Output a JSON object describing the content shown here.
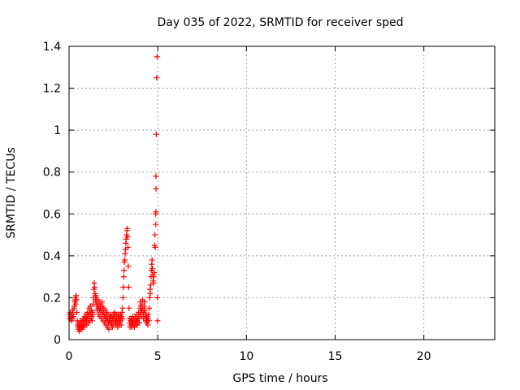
{
  "chart_data": {
    "type": "scatter",
    "title": "Day 035 of 2022, SRMTID for receiver sped",
    "xlabel": "GPS time / hours",
    "ylabel": "SRMTID / TECUs",
    "xlim": [
      0,
      24
    ],
    "ylim": [
      0,
      1.4
    ],
    "xticks": [
      0,
      5,
      10,
      15,
      20
    ],
    "xtick_labels": [
      "0",
      "5",
      "10",
      "15",
      "20"
    ],
    "yticks": [
      0,
      0.2,
      0.4,
      0.6,
      0.8,
      1.0,
      1.2,
      1.4
    ],
    "ytick_labels": [
      "0",
      "0.2",
      "0.4",
      "0.6",
      "0.8",
      "1",
      "1.2",
      "1.4"
    ],
    "grid": true,
    "marker": "+",
    "series": [
      {
        "name": "SRMTID",
        "color": "#ff0000",
        "points": [
          [
            0.02,
            0.12
          ],
          [
            0.05,
            0.1
          ],
          [
            0.08,
            0.13
          ],
          [
            0.1,
            0.11
          ],
          [
            0.13,
            0.09
          ],
          [
            0.15,
            0.12
          ],
          [
            0.18,
            0.1
          ],
          [
            0.2,
            0.14
          ],
          [
            0.23,
            0.12
          ],
          [
            0.25,
            0.11
          ],
          [
            0.28,
            0.15
          ],
          [
            0.3,
            0.16
          ],
          [
            0.32,
            0.18
          ],
          [
            0.34,
            0.19
          ],
          [
            0.36,
            0.2
          ],
          [
            0.38,
            0.17
          ],
          [
            0.4,
            0.21
          ],
          [
            0.42,
            0.19
          ],
          [
            0.44,
            0.13
          ],
          [
            0.46,
            0.09
          ],
          [
            0.48,
            0.07
          ],
          [
            0.5,
            0.06
          ],
          [
            0.52,
            0.05
          ],
          [
            0.54,
            0.08
          ],
          [
            0.56,
            0.06
          ],
          [
            0.58,
            0.04
          ],
          [
            0.6,
            0.07
          ],
          [
            0.62,
            0.09
          ],
          [
            0.64,
            0.05
          ],
          [
            0.66,
            0.06
          ],
          [
            0.68,
            0.08
          ],
          [
            0.7,
            0.07
          ],
          [
            0.72,
            0.05
          ],
          [
            0.74,
            0.09
          ],
          [
            0.76,
            0.06
          ],
          [
            0.78,
            0.08
          ],
          [
            0.8,
            0.1
          ],
          [
            0.82,
            0.07
          ],
          [
            0.84,
            0.06
          ],
          [
            0.86,
            0.09
          ],
          [
            0.88,
            0.11
          ],
          [
            0.9,
            0.08
          ],
          [
            0.92,
            0.07
          ],
          [
            0.94,
            0.1
          ],
          [
            0.96,
            0.12
          ],
          [
            0.98,
            0.09
          ],
          [
            1.0,
            0.07
          ],
          [
            1.02,
            0.11
          ],
          [
            1.04,
            0.13
          ],
          [
            1.06,
            0.1
          ],
          [
            1.08,
            0.08
          ],
          [
            1.1,
            0.12
          ],
          [
            1.12,
            0.15
          ],
          [
            1.14,
            0.11
          ],
          [
            1.16,
            0.09
          ],
          [
            1.18,
            0.13
          ],
          [
            1.2,
            0.16
          ],
          [
            1.22,
            0.12
          ],
          [
            1.24,
            0.1
          ],
          [
            1.26,
            0.14
          ],
          [
            1.28,
            0.11
          ],
          [
            1.3,
            0.09
          ],
          [
            1.32,
            0.13
          ],
          [
            1.34,
            0.12
          ],
          [
            1.36,
            0.17
          ],
          [
            1.38,
            0.2
          ],
          [
            1.4,
            0.24
          ],
          [
            1.42,
            0.27
          ],
          [
            1.44,
            0.25
          ],
          [
            1.46,
            0.22
          ],
          [
            1.48,
            0.19
          ],
          [
            1.5,
            0.21
          ],
          [
            1.52,
            0.18
          ],
          [
            1.54,
            0.2
          ],
          [
            1.56,
            0.16
          ],
          [
            1.58,
            0.14
          ],
          [
            1.6,
            0.17
          ],
          [
            1.62,
            0.19
          ],
          [
            1.64,
            0.15
          ],
          [
            1.66,
            0.12
          ],
          [
            1.68,
            0.16
          ],
          [
            1.7,
            0.18
          ],
          [
            1.72,
            0.14
          ],
          [
            1.74,
            0.11
          ],
          [
            1.76,
            0.15
          ],
          [
            1.78,
            0.17
          ],
          [
            1.8,
            0.13
          ],
          [
            1.82,
            0.1
          ],
          [
            1.84,
            0.14
          ],
          [
            1.86,
            0.18
          ],
          [
            1.88,
            0.16
          ],
          [
            1.9,
            0.12
          ],
          [
            1.92,
            0.09
          ],
          [
            1.94,
            0.13
          ],
          [
            1.96,
            0.15
          ],
          [
            1.98,
            0.11
          ],
          [
            2.0,
            0.08
          ],
          [
            2.02,
            0.12
          ],
          [
            2.04,
            0.14
          ],
          [
            2.06,
            0.1
          ],
          [
            2.08,
            0.07
          ],
          [
            2.1,
            0.11
          ],
          [
            2.12,
            0.13
          ],
          [
            2.14,
            0.09
          ],
          [
            2.16,
            0.06
          ],
          [
            2.18,
            0.1
          ],
          [
            2.2,
            0.12
          ],
          [
            2.22,
            0.08
          ],
          [
            2.24,
            0.05
          ],
          [
            2.26,
            0.09
          ],
          [
            2.28,
            0.11
          ],
          [
            2.3,
            0.08
          ],
          [
            2.32,
            0.1
          ],
          [
            2.34,
            0.12
          ],
          [
            2.36,
            0.09
          ],
          [
            2.38,
            0.07
          ],
          [
            2.4,
            0.11
          ],
          [
            2.42,
            0.08
          ],
          [
            2.44,
            0.06
          ],
          [
            2.46,
            0.1
          ],
          [
            2.48,
            0.12
          ],
          [
            2.5,
            0.09
          ],
          [
            2.52,
            0.07
          ],
          [
            2.54,
            0.11
          ],
          [
            2.56,
            0.13
          ],
          [
            2.58,
            0.1
          ],
          [
            2.6,
            0.08
          ],
          [
            2.62,
            0.12
          ],
          [
            2.64,
            0.09
          ],
          [
            2.66,
            0.07
          ],
          [
            2.68,
            0.1
          ],
          [
            2.7,
            0.12
          ],
          [
            2.72,
            0.08
          ],
          [
            2.74,
            0.06
          ],
          [
            2.76,
            0.1
          ],
          [
            2.78,
            0.12
          ],
          [
            2.8,
            0.09
          ],
          [
            2.82,
            0.07
          ],
          [
            2.84,
            0.11
          ],
          [
            2.86,
            0.08
          ],
          [
            2.88,
            0.1
          ],
          [
            2.9,
            0.12
          ],
          [
            2.92,
            0.09
          ],
          [
            2.94,
            0.07
          ],
          [
            2.96,
            0.11
          ],
          [
            2.98,
            0.13
          ],
          [
            3.0,
            0.1
          ],
          [
            3.02,
            0.15
          ],
          [
            3.04,
            0.2
          ],
          [
            3.06,
            0.25
          ],
          [
            3.08,
            0.3
          ],
          [
            3.1,
            0.33
          ],
          [
            3.12,
            0.37
          ],
          [
            3.14,
            0.38
          ],
          [
            3.16,
            0.41
          ],
          [
            3.18,
            0.43
          ],
          [
            3.2,
            0.46
          ],
          [
            3.22,
            0.48
          ],
          [
            3.24,
            0.5
          ],
          [
            3.26,
            0.52
          ],
          [
            3.28,
            0.53
          ],
          [
            3.3,
            0.49
          ],
          [
            3.32,
            0.44
          ],
          [
            3.34,
            0.35
          ],
          [
            3.36,
            0.25
          ],
          [
            3.38,
            0.15
          ],
          [
            3.4,
            0.1
          ],
          [
            3.42,
            0.08
          ],
          [
            3.44,
            0.06
          ],
          [
            3.46,
            0.09
          ],
          [
            3.48,
            0.07
          ],
          [
            3.5,
            0.1
          ],
          [
            3.52,
            0.08
          ],
          [
            3.54,
            0.06
          ],
          [
            3.56,
            0.09
          ],
          [
            3.58,
            0.11
          ],
          [
            3.6,
            0.08
          ],
          [
            3.62,
            0.07
          ],
          [
            3.64,
            0.1
          ],
          [
            3.66,
            0.08
          ],
          [
            3.68,
            0.06
          ],
          [
            3.7,
            0.09
          ],
          [
            3.72,
            0.11
          ],
          [
            3.74,
            0.08
          ],
          [
            3.76,
            0.07
          ],
          [
            3.78,
            0.1
          ],
          [
            3.8,
            0.12
          ],
          [
            3.82,
            0.09
          ],
          [
            3.84,
            0.07
          ],
          [
            3.86,
            0.1
          ],
          [
            3.88,
            0.08
          ],
          [
            3.9,
            0.11
          ],
          [
            3.92,
            0.13
          ],
          [
            3.94,
            0.1
          ],
          [
            3.96,
            0.08
          ],
          [
            3.98,
            0.12
          ],
          [
            4.0,
            0.15
          ],
          [
            4.02,
            0.18
          ],
          [
            4.04,
            0.16
          ],
          [
            4.06,
            0.13
          ],
          [
            4.08,
            0.11
          ],
          [
            4.1,
            0.14
          ],
          [
            4.12,
            0.17
          ],
          [
            4.14,
            0.19
          ],
          [
            4.16,
            0.15
          ],
          [
            4.18,
            0.12
          ],
          [
            4.2,
            0.1
          ],
          [
            4.22,
            0.13
          ],
          [
            4.24,
            0.16
          ],
          [
            4.26,
            0.18
          ],
          [
            4.28,
            0.14
          ],
          [
            4.3,
            0.11
          ],
          [
            4.32,
            0.09
          ],
          [
            4.34,
            0.12
          ],
          [
            4.36,
            0.1
          ],
          [
            4.38,
            0.08
          ],
          [
            4.4,
            0.11
          ],
          [
            4.42,
            0.09
          ],
          [
            4.44,
            0.07
          ],
          [
            4.46,
            0.1
          ],
          [
            4.48,
            0.12
          ],
          [
            4.5,
            0.09
          ],
          [
            4.52,
            0.15
          ],
          [
            4.54,
            0.2
          ],
          [
            4.56,
            0.24
          ],
          [
            4.58,
            0.22
          ],
          [
            4.6,
            0.26
          ],
          [
            4.62,
            0.3
          ],
          [
            4.64,
            0.33
          ],
          [
            4.66,
            0.36
          ],
          [
            4.68,
            0.38
          ],
          [
            4.7,
            0.34
          ],
          [
            4.72,
            0.31
          ],
          [
            4.74,
            0.28
          ],
          [
            4.76,
            0.27
          ],
          [
            4.78,
            0.3
          ],
          [
            4.8,
            0.32
          ],
          [
            4.82,
            0.45
          ],
          [
            4.84,
            0.5
          ],
          [
            4.86,
            0.44
          ],
          [
            4.88,
            0.6
          ],
          [
            4.9,
            0.78
          ],
          [
            4.92,
            0.98
          ],
          [
            4.94,
            1.25
          ],
          [
            4.96,
            1.35
          ],
          [
            4.98,
            0.2
          ],
          [
            4.99,
            0.09
          ],
          [
            4.9,
            0.72
          ],
          [
            4.89,
            0.55
          ],
          [
            4.9,
            0.61
          ]
        ]
      }
    ]
  }
}
